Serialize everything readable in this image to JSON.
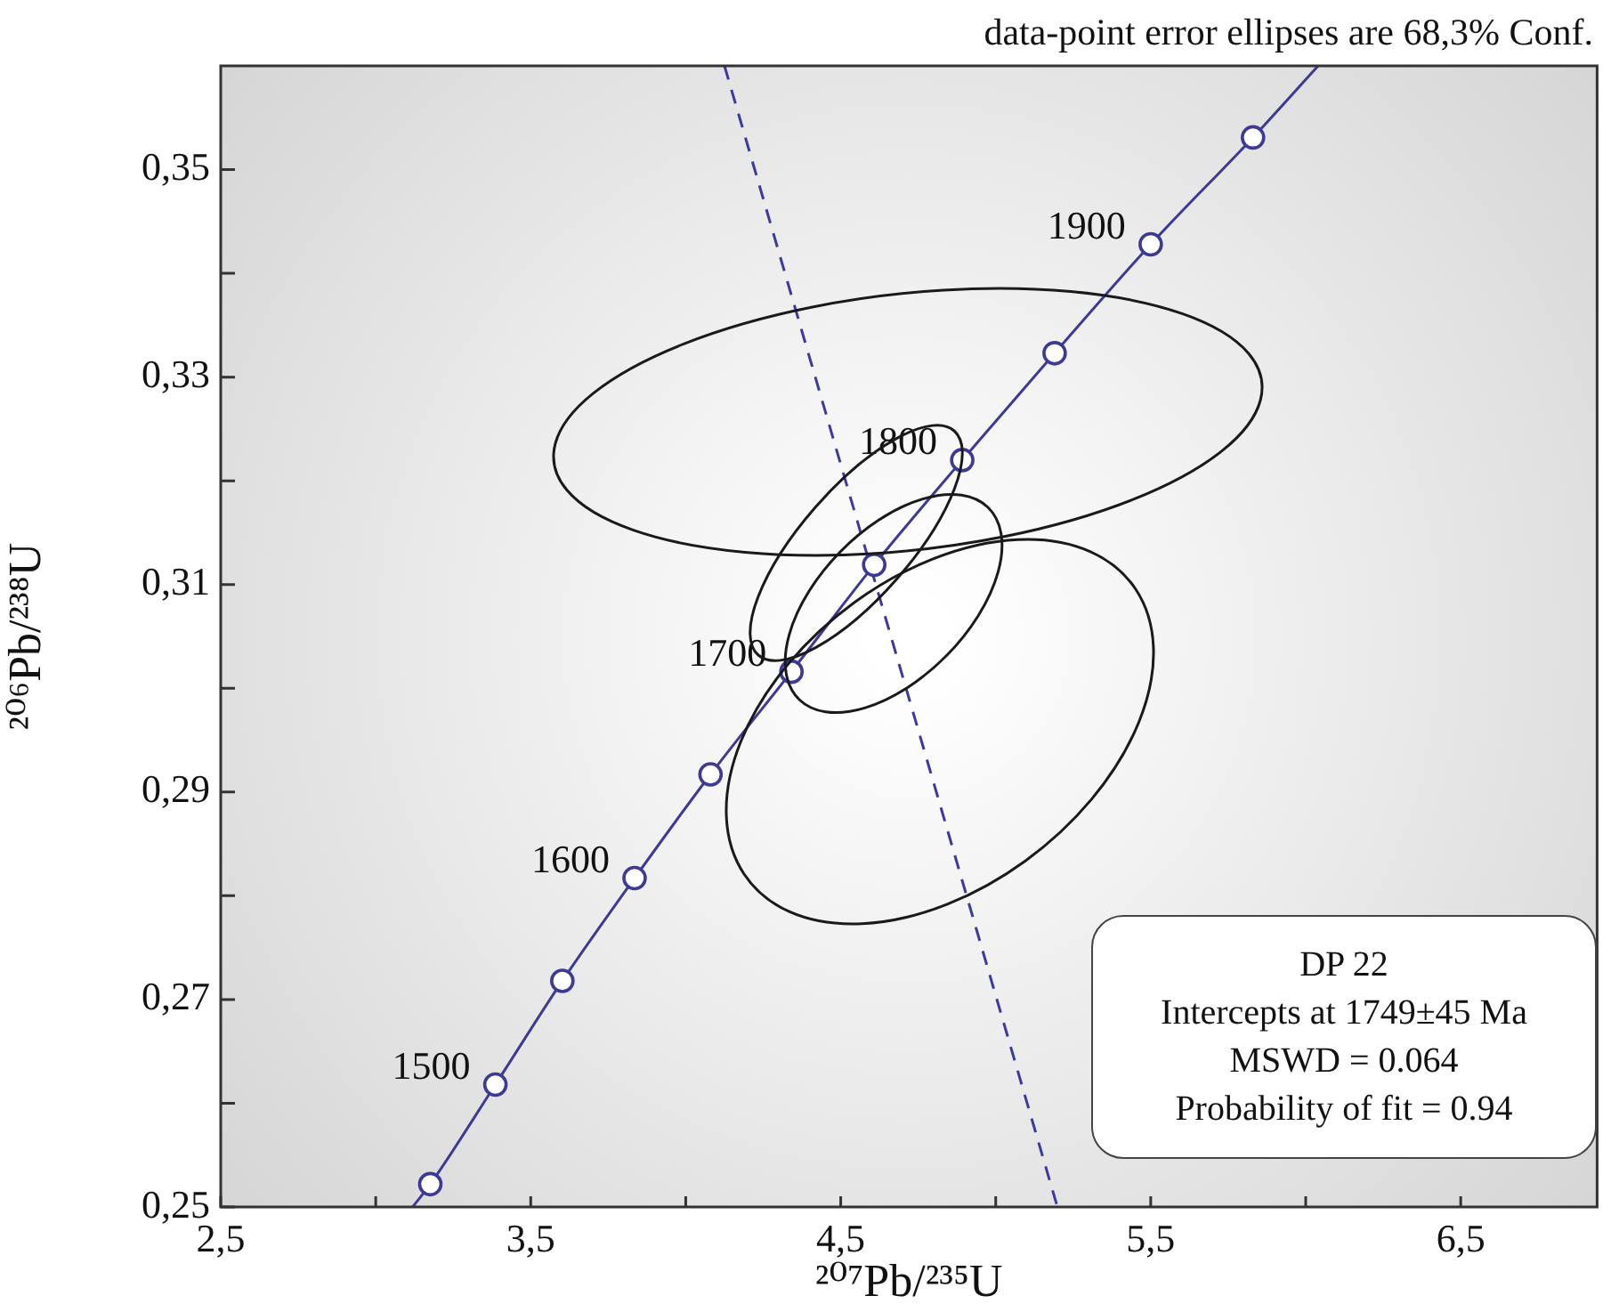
{
  "chart_data": {
    "type": "line",
    "xlabel": "²⁰⁷Pb/²³⁵U",
    "ylabel": "²⁰⁶Pb/²³⁸U",
    "xlim": [
      2.5,
      6.94
    ],
    "ylim": [
      0.25,
      0.36
    ],
    "xticks": [
      {
        "value": 2.5,
        "label": "2,5"
      },
      {
        "value": 3,
        "label": null
      },
      {
        "value": 3.5,
        "label": "3,5"
      },
      {
        "value": 4,
        "label": null
      },
      {
        "value": 4.5,
        "label": "4,5"
      },
      {
        "value": 5,
        "label": null
      },
      {
        "value": 5.5,
        "label": "5,5"
      },
      {
        "value": 6,
        "label": null
      },
      {
        "value": 6.5,
        "label": "6,5"
      }
    ],
    "yticks": [
      {
        "value": 0.25,
        "label": "0,25"
      },
      {
        "value": 0.26,
        "label": null
      },
      {
        "value": 0.27,
        "label": "0,27"
      },
      {
        "value": 0.28,
        "label": null
      },
      {
        "value": 0.29,
        "label": "0,29"
      },
      {
        "value": 0.3,
        "label": null
      },
      {
        "value": 0.31,
        "label": "0,31"
      },
      {
        "value": 0.32,
        "label": null
      },
      {
        "value": 0.33,
        "label": "0,33"
      },
      {
        "value": 0.34,
        "label": null
      },
      {
        "value": 0.35,
        "label": "0,35"
      }
    ],
    "grid": false,
    "legend": false,
    "marker": "none",
    "annotations": [
      "data-point error ellipses are 68,3% Conf.",
      "DP 22",
      "Intercepts at 1749±45 Ma",
      "MSWD = 0.064",
      "Probability of fit = 0.94",
      {
        "text": "1500",
        "x": 3.386,
        "y": 0.2618
      },
      {
        "text": "1600",
        "x": 3.835,
        "y": 0.2817
      },
      {
        "text": "1700",
        "x": 4.341,
        "y": 0.3016
      },
      {
        "text": "1800",
        "x": 4.892,
        "y": 0.322
      },
      {
        "text": "1900",
        "x": 5.5,
        "y": 0.3428
      }
    ],
    "series": [
      {
        "color": "#3d3a96",
        "x": [
          3.119,
          3.176,
          3.386,
          3.602,
          3.835,
          4.08,
          4.341,
          4.608,
          4.892,
          5.19,
          5.5,
          5.83,
          6.04
        ],
        "values": [
          0.25,
          0.2522,
          0.2618,
          0.2718,
          0.2817,
          0.2917,
          0.3016,
          0.3119,
          0.322,
          0.3323,
          0.3428,
          0.3531,
          0.36
        ]
      },
      {
        "type": "scatter",
        "color": "#3d3a96",
        "marker": "circle",
        "x": [
          3.176,
          3.386,
          3.602,
          3.835,
          4.08,
          4.341,
          4.608,
          4.892,
          5.19,
          5.5,
          5.83
        ],
        "values": [
          0.2522,
          0.2618,
          0.2718,
          0.2817,
          0.2917,
          0.3016,
          0.3119,
          0.322,
          0.3323,
          0.3428,
          0.3531
        ]
      },
      {
        "color": "#3a3aa0",
        "line_style": "dashed",
        "x": [
          4.125,
          5.199
        ],
        "values": [
          0.36,
          0.25
        ]
      }
    ]
  }
}
